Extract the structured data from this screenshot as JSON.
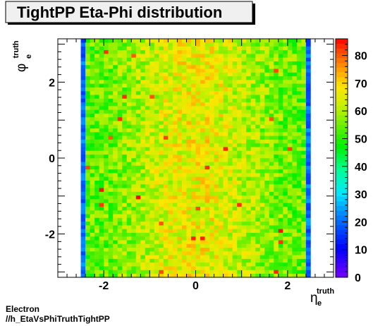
{
  "chart_data": {
    "type": "heatmap",
    "title": "TightPP Eta-Phi distribution",
    "xlabel": "η",
    "xlabel_sub": "e",
    "xlabel_sup": "truth",
    "ylabel": "φ",
    "ylabel_sub": "e",
    "ylabel_sup": "truth",
    "xlim": [
      -3.0,
      3.0
    ],
    "ylim": [
      -3.1416,
      3.1416
    ],
    "x_ticks": [
      -2,
      0,
      2
    ],
    "x_tick_labels": [
      "-2",
      "0",
      "2"
    ],
    "y_ticks": [
      -2,
      0,
      2
    ],
    "y_tick_labels": [
      "-2",
      "0",
      "2"
    ],
    "z_range": [
      0,
      86
    ],
    "z_ticks": [
      0,
      10,
      20,
      30,
      40,
      50,
      60,
      70,
      80
    ],
    "z_tick_labels": [
      "0",
      "10",
      "20",
      "30",
      "40",
      "50",
      "60",
      "70",
      "80"
    ],
    "nbins_x": 50,
    "nbins_y": 64,
    "bin_range_x": [
      -2.5,
      2.5
    ],
    "edge_values": [
      15,
      25
    ],
    "center_values": [
      52,
      66
    ],
    "grid": false,
    "legend": "colorbar-right"
  },
  "footer": {
    "line1": "Electron",
    "line2": "//h_EtaVsPhiTruthTightPP"
  }
}
